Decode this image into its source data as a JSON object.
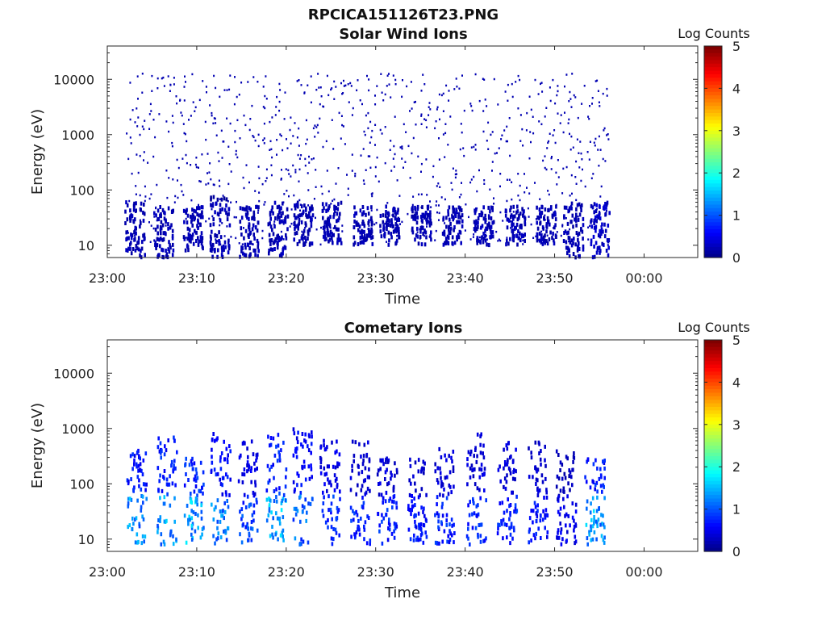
{
  "figure_title": "RPCICA151126T23.PNG",
  "colormap": [
    "#00007f",
    "#0000ff",
    "#007fff",
    "#00ffff",
    "#7fff7f",
    "#ffff00",
    "#ff7f00",
    "#ff0000",
    "#7f0000"
  ],
  "chart_data": [
    {
      "type": "heatmap",
      "title": "Solar Wind Ions",
      "xlabel": "Time",
      "ylabel": "Energy (eV)",
      "yscale": "log",
      "ylim": [
        6,
        40000
      ],
      "yticks": [
        10,
        100,
        1000,
        10000
      ],
      "yticklabels": [
        "10",
        "100",
        "1000",
        "10000"
      ],
      "xlim": [
        "23:00",
        "00:06"
      ],
      "xticklabels": [
        "23:00",
        "23:10",
        "23:20",
        "23:30",
        "23:40",
        "23:50",
        "00:00"
      ],
      "data_range": [
        "23:02",
        "23:56"
      ],
      "colorbar": {
        "label": "Log Counts",
        "min": 0,
        "max": 5,
        "ticks": [
          0,
          1,
          2,
          3,
          4,
          5
        ]
      },
      "clusters": [
        {
          "t": 3.0,
          "emin": 6,
          "emax": 60,
          "level": 0.3
        },
        {
          "t": 6.2,
          "emin": 6,
          "emax": 50,
          "level": 0.3
        },
        {
          "t": 9.5,
          "emin": 8,
          "emax": 50,
          "level": 0.3
        },
        {
          "t": 12.5,
          "emin": 6,
          "emax": 80,
          "level": 0.3
        },
        {
          "t": 15.8,
          "emin": 6,
          "emax": 50,
          "level": 0.3
        },
        {
          "t": 19.0,
          "emin": 6,
          "emax": 60,
          "level": 0.3
        },
        {
          "t": 21.8,
          "emin": 10,
          "emax": 60,
          "level": 0.3
        },
        {
          "t": 25.0,
          "emin": 10,
          "emax": 60,
          "level": 0.3
        },
        {
          "t": 28.5,
          "emin": 10,
          "emax": 50,
          "level": 0.3
        },
        {
          "t": 31.5,
          "emin": 10,
          "emax": 50,
          "level": 0.3
        },
        {
          "t": 35.0,
          "emin": 10,
          "emax": 50,
          "level": 0.3
        },
        {
          "t": 38.5,
          "emin": 10,
          "emax": 50,
          "level": 0.3
        },
        {
          "t": 42.0,
          "emin": 10,
          "emax": 50,
          "level": 0.3
        },
        {
          "t": 45.5,
          "emin": 10,
          "emax": 50,
          "level": 0.3
        },
        {
          "t": 49.0,
          "emin": 10,
          "emax": 50,
          "level": 0.3
        },
        {
          "t": 52.0,
          "emin": 6,
          "emax": 60,
          "level": 0.3
        },
        {
          "t": 55.0,
          "emin": 6,
          "emax": 60,
          "level": 0.4
        }
      ]
    },
    {
      "type": "heatmap",
      "title": "Cometary Ions",
      "xlabel": "Time",
      "ylabel": "Energy (eV)",
      "yscale": "log",
      "ylim": [
        6,
        40000
      ],
      "yticks": [
        10,
        100,
        1000,
        10000
      ],
      "yticklabels": [
        "10",
        "100",
        "1000",
        "10000"
      ],
      "xlim": [
        "23:00",
        "00:06"
      ],
      "xticklabels": [
        "23:00",
        "23:10",
        "23:20",
        "23:30",
        "23:40",
        "23:50",
        "00:00"
      ],
      "data_range": [
        "23:02",
        "23:56"
      ],
      "colorbar": {
        "label": "Log Counts",
        "min": 0,
        "max": 5,
        "ticks": [
          0,
          1,
          2,
          3,
          4,
          5
        ]
      },
      "clusters": [
        {
          "t": 3.2,
          "emin": 8,
          "emax": 400,
          "level": 1.5
        },
        {
          "t": 6.6,
          "emin": 8,
          "emax": 700,
          "level": 1.6
        },
        {
          "t": 9.6,
          "emin": 8,
          "emax": 300,
          "level": 1.7
        },
        {
          "t": 12.6,
          "emin": 8,
          "emax": 800,
          "level": 1.4
        },
        {
          "t": 15.6,
          "emin": 8,
          "emax": 600,
          "level": 1.1
        },
        {
          "t": 18.8,
          "emin": 8,
          "emax": 800,
          "level": 1.7
        },
        {
          "t": 21.8,
          "emin": 8,
          "emax": 1000,
          "level": 1.3
        },
        {
          "t": 24.8,
          "emin": 8,
          "emax": 600,
          "level": 1.0
        },
        {
          "t": 28.2,
          "emin": 8,
          "emax": 700,
          "level": 0.9
        },
        {
          "t": 31.2,
          "emin": 8,
          "emax": 300,
          "level": 0.9
        },
        {
          "t": 34.6,
          "emin": 8,
          "emax": 300,
          "level": 0.8
        },
        {
          "t": 37.6,
          "emin": 8,
          "emax": 500,
          "level": 0.9
        },
        {
          "t": 41.2,
          "emin": 8,
          "emax": 800,
          "level": 0.9
        },
        {
          "t": 44.6,
          "emin": 8,
          "emax": 600,
          "level": 0.9
        },
        {
          "t": 48.0,
          "emin": 8,
          "emax": 700,
          "level": 0.8
        },
        {
          "t": 51.2,
          "emin": 8,
          "emax": 400,
          "level": 0.6
        },
        {
          "t": 54.4,
          "emin": 8,
          "emax": 300,
          "level": 1.6
        }
      ]
    }
  ]
}
